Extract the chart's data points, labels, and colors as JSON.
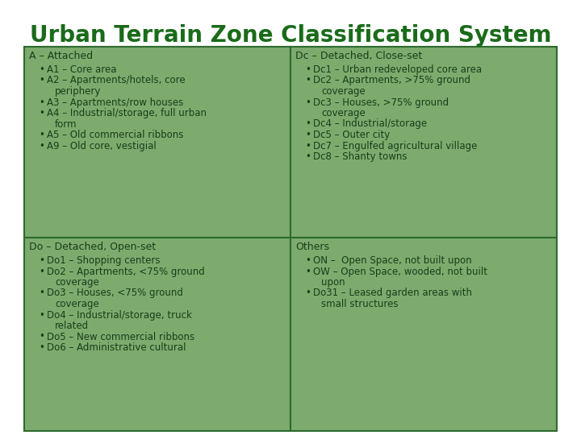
{
  "title": "Urban Terrain Zone Classification System",
  "title_color": "#1a6b1a",
  "title_fontsize": 20,
  "bg_color": "#ffffff",
  "cell_bg": "#7dab6e",
  "cell_border": "#2d6a2d",
  "text_color": "#1a3d1a",
  "header_fontsize": 9.0,
  "item_fontsize": 8.5,
  "cells": [
    {
      "header": "A – Attached",
      "lines": [
        {
          "bullet": true,
          "text": "A1 – Core area"
        },
        {
          "bullet": true,
          "text": "A2 – Apartments/hotels, core"
        },
        {
          "bullet": false,
          "text": "periphery"
        },
        {
          "bullet": true,
          "text": "A3 – Apartments/row houses"
        },
        {
          "bullet": true,
          "text": "A4 – Industrial/storage, full urban"
        },
        {
          "bullet": false,
          "text": "form"
        },
        {
          "bullet": true,
          "text": "A5 – Old commercial ribbons"
        },
        {
          "bullet": true,
          "text": "A9 – Old core, vestigial"
        }
      ]
    },
    {
      "header": "Dc – Detached, Close-set",
      "lines": [
        {
          "bullet": true,
          "text": "Dc1 – Urban redeveloped core area"
        },
        {
          "bullet": true,
          "text": "Dc2 – Apartments, >75% ground"
        },
        {
          "bullet": false,
          "text": "coverage"
        },
        {
          "bullet": true,
          "text": "Dc3 – Houses, >75% ground"
        },
        {
          "bullet": false,
          "text": "coverage"
        },
        {
          "bullet": true,
          "text": "Dc4 – Industrial/storage"
        },
        {
          "bullet": true,
          "text": "Dc5 – Outer city"
        },
        {
          "bullet": true,
          "text": "Dc7 – Engulfed agricultural village"
        },
        {
          "bullet": true,
          "text": "Dc8 – Shanty towns"
        }
      ]
    },
    {
      "header": "Do – Detached, Open-set",
      "lines": [
        {
          "bullet": true,
          "text": "Do1 – Shopping centers"
        },
        {
          "bullet": true,
          "text": "Do2 – Apartments, <75% ground"
        },
        {
          "bullet": false,
          "text": "coverage"
        },
        {
          "bullet": true,
          "text": "Do3 – Houses, <75% ground"
        },
        {
          "bullet": false,
          "text": "coverage"
        },
        {
          "bullet": true,
          "text": "Do4 – Industrial/storage, truck"
        },
        {
          "bullet": false,
          "text": "related"
        },
        {
          "bullet": true,
          "text": "Do5 – New commercial ribbons"
        },
        {
          "bullet": true,
          "text": "Do6 – Administrative cultural"
        }
      ]
    },
    {
      "header": "Others",
      "lines": [
        {
          "bullet": true,
          "text": "ON –  Open Space, not built upon"
        },
        {
          "bullet": true,
          "text": "OW – Open Space, wooded, not built"
        },
        {
          "bullet": false,
          "text": "upon"
        },
        {
          "bullet": true,
          "text": "Do31 – Leased garden areas with"
        },
        {
          "bullet": false,
          "text": "small structures"
        }
      ]
    }
  ]
}
